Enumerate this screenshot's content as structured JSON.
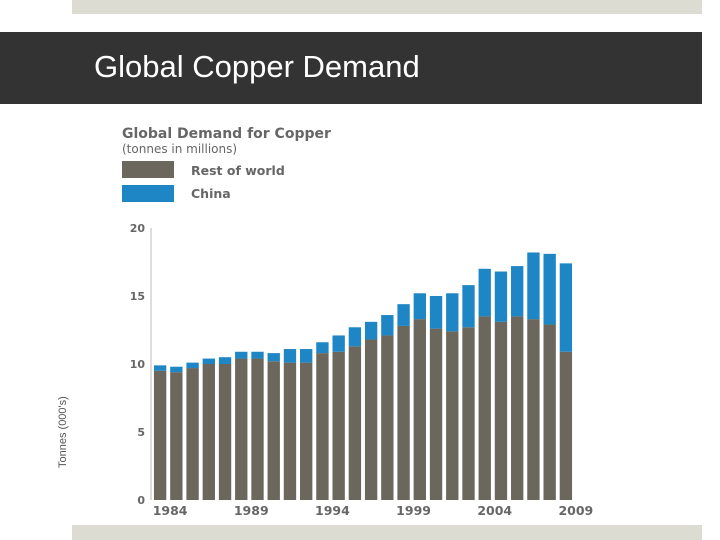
{
  "slide": {
    "title": "Global Copper Demand"
  },
  "colors": {
    "title_bar": "#333333",
    "strip": "#dcdcd2"
  },
  "chart_data": {
    "type": "bar",
    "stacked": true,
    "title": "Global Demand for Copper",
    "subtitle": "(tonnes in millions)",
    "ylabel": "Tonnes (000's)",
    "xlabel": "",
    "ylim": [
      0,
      20
    ],
    "yticks": [
      0,
      5,
      10,
      15,
      20
    ],
    "x_tick_labels": [
      "1984",
      "1989",
      "1994",
      "1999",
      "2004",
      "2009"
    ],
    "legend_position": "top-left",
    "grid": false,
    "categories": [
      "1984",
      "1985",
      "1986",
      "1987",
      "1988",
      "1989",
      "1990",
      "1991",
      "1992",
      "1993",
      "1994",
      "1995",
      "1996",
      "1997",
      "1998",
      "1999",
      "2000",
      "2001",
      "2002",
      "2003",
      "2004",
      "2005",
      "2006",
      "2007",
      "2008",
      "2009"
    ],
    "series": [
      {
        "name": "Rest of world",
        "color": "#6b675c",
        "values": [
          9.5,
          9.4,
          9.7,
          10.0,
          10.0,
          10.4,
          10.4,
          10.2,
          10.1,
          10.1,
          10.8,
          10.9,
          11.3,
          11.8,
          12.1,
          12.8,
          13.3,
          12.6,
          12.4,
          12.7,
          13.5,
          13.1,
          13.5,
          13.3,
          12.9,
          10.9
        ]
      },
      {
        "name": "China",
        "color": "#1e86c4",
        "values": [
          0.4,
          0.4,
          0.4,
          0.4,
          0.5,
          0.5,
          0.5,
          0.6,
          1.0,
          1.0,
          0.8,
          1.2,
          1.4,
          1.3,
          1.5,
          1.6,
          1.9,
          2.4,
          2.8,
          3.1,
          3.5,
          3.7,
          3.7,
          4.9,
          5.2,
          6.5
        ]
      }
    ]
  }
}
